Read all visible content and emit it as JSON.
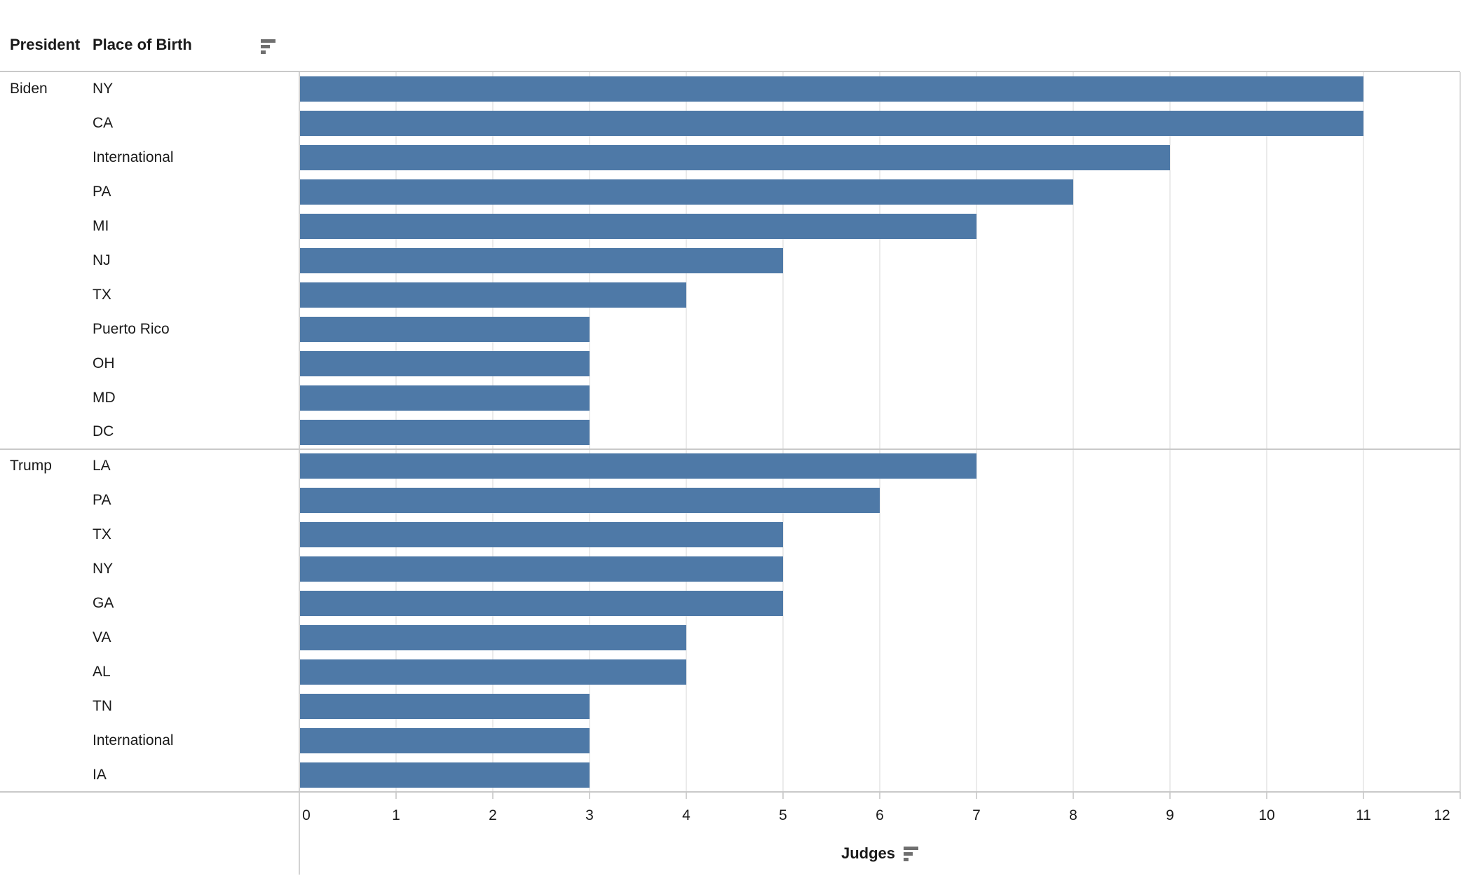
{
  "header": {
    "president_label": "President",
    "place_of_birth_label": "Place of Birth"
  },
  "axis": {
    "label": "Judges",
    "min": 0,
    "max": 12,
    "tick_step": 1,
    "ticks": [
      "0",
      "1",
      "2",
      "3",
      "4",
      "5",
      "6",
      "7",
      "8",
      "9",
      "10",
      "11",
      "12"
    ]
  },
  "icons": {
    "header_sort_icon": "descending-sort-icon",
    "axis_sort_icon": "descending-sort-icon"
  },
  "colors": {
    "bar": "#4e79a7",
    "gridline": "#ebebeb",
    "axis_line": "#d2d2d2",
    "divider_line": "#c9c9c9",
    "sort_icon": "#6f6f6f",
    "text": "#1a1a1a"
  },
  "chart_data": {
    "type": "bar",
    "orientation": "horizontal",
    "title": "",
    "xlabel": "Judges",
    "ylabel": "Place of Birth",
    "xlim": [
      0,
      12
    ],
    "grid": true,
    "groups": [
      {
        "president": "Biden",
        "rows": [
          {
            "label": "NY",
            "value": 11
          },
          {
            "label": "CA",
            "value": 11
          },
          {
            "label": "International",
            "value": 9
          },
          {
            "label": "PA",
            "value": 8
          },
          {
            "label": "MI",
            "value": 7
          },
          {
            "label": "NJ",
            "value": 5
          },
          {
            "label": "TX",
            "value": 4
          },
          {
            "label": "Puerto Rico",
            "value": 3
          },
          {
            "label": "OH",
            "value": 3
          },
          {
            "label": "MD",
            "value": 3
          },
          {
            "label": "DC",
            "value": 3
          }
        ]
      },
      {
        "president": "Trump",
        "rows": [
          {
            "label": "LA",
            "value": 7
          },
          {
            "label": "PA",
            "value": 6
          },
          {
            "label": "TX",
            "value": 5
          },
          {
            "label": "NY",
            "value": 5
          },
          {
            "label": "GA",
            "value": 5
          },
          {
            "label": "VA",
            "value": 4
          },
          {
            "label": "AL",
            "value": 4
          },
          {
            "label": "TN",
            "value": 3
          },
          {
            "label": "International",
            "value": 3
          },
          {
            "label": "IA",
            "value": 3
          }
        ]
      }
    ]
  }
}
